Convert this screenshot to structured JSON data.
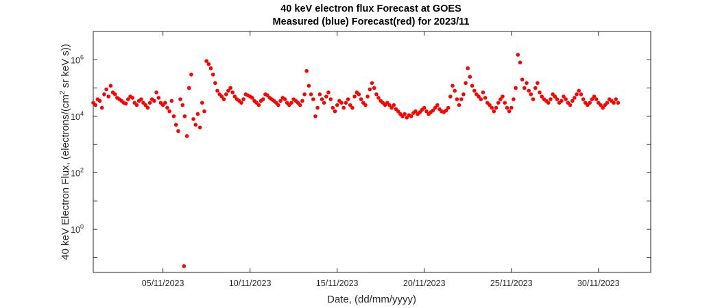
{
  "chart_data": {
    "type": "scatter",
    "title": "40 keV electron flux Forecast at GOES",
    "subtitle": "Measured (blue) Forecast(red) for 2023/11",
    "xlabel": "Date, (dd/mm/yyyy)",
    "ylabel_parts": [
      "40 keV Electron Flux, (electrons/(cm",
      "2",
      " sr keV s))"
    ],
    "y_scale": "log",
    "ylim": [
      0.03,
      10000000
    ],
    "xlim": [
      "2023-11-01T00:00",
      "2023-12-03T00:00"
    ],
    "x_ticks": [
      "05/11/2023",
      "10/11/2023",
      "15/11/2023",
      "20/11/2023",
      "25/11/2023",
      "30/11/2023"
    ],
    "y_ticks": [
      {
        "base": "10",
        "exp": "0"
      },
      {
        "base": "10",
        "exp": "2"
      },
      {
        "base": "10",
        "exp": "4"
      },
      {
        "base": "10",
        "exp": "6"
      }
    ],
    "grid": false,
    "colors": {
      "forecast": "#ff0000",
      "axis": "#262626",
      "background": "#ffffff"
    },
    "series": [
      {
        "color": "#ff0000",
        "points": [
          [
            "2023-11-01T00:00",
            30000
          ],
          [
            "2023-11-01T03:00",
            25000
          ],
          [
            "2023-11-01T06:00",
            40000
          ],
          [
            "2023-11-01T09:00",
            35000
          ],
          [
            "2023-11-01T12:00",
            20000
          ],
          [
            "2023-11-01T15:00",
            60000
          ],
          [
            "2023-11-01T18:00",
            90000
          ],
          [
            "2023-11-01T21:00",
            50000
          ],
          [
            "2023-11-02T00:00",
            120000
          ],
          [
            "2023-11-02T03:00",
            70000
          ],
          [
            "2023-11-02T06:00",
            60000
          ],
          [
            "2023-11-02T09:00",
            45000
          ],
          [
            "2023-11-02T12:00",
            40000
          ],
          [
            "2023-11-02T15:00",
            35000
          ],
          [
            "2023-11-02T18:00",
            30000
          ],
          [
            "2023-11-02T21:00",
            28000
          ],
          [
            "2023-11-03T00:00",
            40000
          ],
          [
            "2023-11-03T03:00",
            50000
          ],
          [
            "2023-11-03T06:00",
            45000
          ],
          [
            "2023-11-03T09:00",
            30000
          ],
          [
            "2023-11-03T12:00",
            25000
          ],
          [
            "2023-11-03T15:00",
            35000
          ],
          [
            "2023-11-03T18:00",
            40000
          ],
          [
            "2023-11-03T21:00",
            30000
          ],
          [
            "2023-11-04T00:00",
            25000
          ],
          [
            "2023-11-04T03:00",
            20000
          ],
          [
            "2023-11-04T06:00",
            30000
          ],
          [
            "2023-11-04T09:00",
            40000
          ],
          [
            "2023-11-04T12:00",
            35000
          ],
          [
            "2023-11-04T15:00",
            70000
          ],
          [
            "2023-11-04T18:00",
            45000
          ],
          [
            "2023-11-04T21:00",
            30000
          ],
          [
            "2023-11-05T00:00",
            25000
          ],
          [
            "2023-11-05T03:00",
            30000
          ],
          [
            "2023-11-05T06:00",
            20000
          ],
          [
            "2023-11-05T09:00",
            15000
          ],
          [
            "2023-11-05T12:00",
            35000
          ],
          [
            "2023-11-05T15:00",
            10000
          ],
          [
            "2023-11-05T18:00",
            5000
          ],
          [
            "2023-11-05T21:00",
            3000
          ],
          [
            "2023-11-06T00:00",
            40000
          ],
          [
            "2023-11-06T03:00",
            25000
          ],
          [
            "2023-11-06T06:00",
            10000
          ],
          [
            "2023-11-06T09:00",
            2000
          ],
          [
            "2023-11-06T12:00",
            100000
          ],
          [
            "2023-11-06T15:00",
            300000
          ],
          [
            "2023-11-06T18:00",
            8000
          ],
          [
            "2023-11-06T21:00",
            5000
          ],
          [
            "2023-11-07T00:00",
            12000
          ],
          [
            "2023-11-07T03:00",
            4000
          ],
          [
            "2023-11-07T06:00",
            30000
          ],
          [
            "2023-11-07T09:00",
            15000
          ],
          [
            "2023-11-07T12:00",
            900000
          ],
          [
            "2023-11-07T15:00",
            700000
          ],
          [
            "2023-11-07T18:00",
            500000
          ],
          [
            "2023-11-07T21:00",
            300000
          ],
          [
            "2023-11-08T00:00",
            150000
          ],
          [
            "2023-11-08T03:00",
            80000
          ],
          [
            "2023-11-08T06:00",
            60000
          ],
          [
            "2023-11-08T09:00",
            50000
          ],
          [
            "2023-11-08T12:00",
            40000
          ],
          [
            "2023-11-08T15:00",
            60000
          ],
          [
            "2023-11-08T18:00",
            80000
          ],
          [
            "2023-11-08T21:00",
            100000
          ],
          [
            "2023-11-09T00:00",
            70000
          ],
          [
            "2023-11-09T03:00",
            50000
          ],
          [
            "2023-11-09T06:00",
            40000
          ],
          [
            "2023-11-09T09:00",
            35000
          ],
          [
            "2023-11-09T12:00",
            30000
          ],
          [
            "2023-11-09T15:00",
            40000
          ],
          [
            "2023-11-09T18:00",
            60000
          ],
          [
            "2023-11-09T21:00",
            55000
          ],
          [
            "2023-11-10T00:00",
            50000
          ],
          [
            "2023-11-10T03:00",
            45000
          ],
          [
            "2023-11-10T06:00",
            35000
          ],
          [
            "2023-11-10T09:00",
            30000
          ],
          [
            "2023-11-10T12:00",
            25000
          ],
          [
            "2023-11-10T15:00",
            35000
          ],
          [
            "2023-11-10T18:00",
            40000
          ],
          [
            "2023-11-10T21:00",
            60000
          ],
          [
            "2023-11-11T00:00",
            55000
          ],
          [
            "2023-11-11T03:00",
            45000
          ],
          [
            "2023-11-11T06:00",
            40000
          ],
          [
            "2023-11-11T09:00",
            35000
          ],
          [
            "2023-11-11T12:00",
            30000
          ],
          [
            "2023-11-11T15:00",
            25000
          ],
          [
            "2023-11-11T18:00",
            35000
          ],
          [
            "2023-11-11T21:00",
            45000
          ],
          [
            "2023-11-12T00:00",
            40000
          ],
          [
            "2023-11-12T03:00",
            30000
          ],
          [
            "2023-11-12T06:00",
            25000
          ],
          [
            "2023-11-12T09:00",
            30000
          ],
          [
            "2023-11-12T12:00",
            40000
          ],
          [
            "2023-11-12T15:00",
            35000
          ],
          [
            "2023-11-12T18:00",
            30000
          ],
          [
            "2023-11-12T21:00",
            25000
          ],
          [
            "2023-11-13T00:00",
            35000
          ],
          [
            "2023-11-13T03:00",
            60000
          ],
          [
            "2023-11-13T06:00",
            400000
          ],
          [
            "2023-11-13T09:00",
            120000
          ],
          [
            "2023-11-13T12:00",
            60000
          ],
          [
            "2023-11-13T15:00",
            40000
          ],
          [
            "2023-11-13T18:00",
            10000
          ],
          [
            "2023-11-13T21:00",
            20000
          ],
          [
            "2023-11-14T00:00",
            60000
          ],
          [
            "2023-11-14T03:00",
            40000
          ],
          [
            "2023-11-14T06:00",
            30000
          ],
          [
            "2023-11-14T09:00",
            50000
          ],
          [
            "2023-11-14T12:00",
            70000
          ],
          [
            "2023-11-14T15:00",
            40000
          ],
          [
            "2023-11-14T18:00",
            20000
          ],
          [
            "2023-11-14T21:00",
            15000
          ],
          [
            "2023-11-15T00:00",
            25000
          ],
          [
            "2023-11-15T03:00",
            35000
          ],
          [
            "2023-11-15T06:00",
            30000
          ],
          [
            "2023-11-15T09:00",
            20000
          ],
          [
            "2023-11-15T12:00",
            30000
          ],
          [
            "2023-11-15T15:00",
            40000
          ],
          [
            "2023-11-15T18:00",
            25000
          ],
          [
            "2023-11-15T21:00",
            20000
          ],
          [
            "2023-11-16T00:00",
            50000
          ],
          [
            "2023-11-16T03:00",
            70000
          ],
          [
            "2023-11-16T06:00",
            60000
          ],
          [
            "2023-11-16T09:00",
            40000
          ],
          [
            "2023-11-16T12:00",
            30000
          ],
          [
            "2023-11-16T15:00",
            25000
          ],
          [
            "2023-11-16T18:00",
            50000
          ],
          [
            "2023-11-16T21:00",
            90000
          ],
          [
            "2023-11-17T00:00",
            150000
          ],
          [
            "2023-11-17T03:00",
            100000
          ],
          [
            "2023-11-17T06:00",
            60000
          ],
          [
            "2023-11-17T09:00",
            45000
          ],
          [
            "2023-11-17T12:00",
            35000
          ],
          [
            "2023-11-17T15:00",
            30000
          ],
          [
            "2023-11-17T18:00",
            25000
          ],
          [
            "2023-11-17T21:00",
            30000
          ],
          [
            "2023-11-18T00:00",
            25000
          ],
          [
            "2023-11-18T03:00",
            20000
          ],
          [
            "2023-11-18T06:00",
            25000
          ],
          [
            "2023-11-18T09:00",
            18000
          ],
          [
            "2023-11-18T12:00",
            15000
          ],
          [
            "2023-11-18T15:00",
            12000
          ],
          [
            "2023-11-18T18:00",
            10000
          ],
          [
            "2023-11-18T21:00",
            12000
          ],
          [
            "2023-11-19T00:00",
            9000
          ],
          [
            "2023-11-19T03:00",
            11000
          ],
          [
            "2023-11-19T06:00",
            10000
          ],
          [
            "2023-11-19T09:00",
            13000
          ],
          [
            "2023-11-19T12:00",
            15000
          ],
          [
            "2023-11-19T15:00",
            12000
          ],
          [
            "2023-11-19T18:00",
            14000
          ],
          [
            "2023-11-19T21:00",
            17000
          ],
          [
            "2023-11-20T00:00",
            20000
          ],
          [
            "2023-11-20T03:00",
            15000
          ],
          [
            "2023-11-20T06:00",
            12000
          ],
          [
            "2023-11-20T09:00",
            14000
          ],
          [
            "2023-11-20T12:00",
            16000
          ],
          [
            "2023-11-20T15:00",
            20000
          ],
          [
            "2023-11-20T18:00",
            25000
          ],
          [
            "2023-11-20T21:00",
            18000
          ],
          [
            "2023-11-21T00:00",
            15000
          ],
          [
            "2023-11-21T03:00",
            14000
          ],
          [
            "2023-11-21T06:00",
            16000
          ],
          [
            "2023-11-21T09:00",
            20000
          ],
          [
            "2023-11-21T12:00",
            50000
          ],
          [
            "2023-11-21T15:00",
            120000
          ],
          [
            "2023-11-21T18:00",
            80000
          ],
          [
            "2023-11-21T21:00",
            40000
          ],
          [
            "2023-11-22T00:00",
            25000
          ],
          [
            "2023-11-22T03:00",
            40000
          ],
          [
            "2023-11-22T06:00",
            60000
          ],
          [
            "2023-11-22T09:00",
            150000
          ],
          [
            "2023-11-22T12:00",
            500000
          ],
          [
            "2023-11-22T15:00",
            250000
          ],
          [
            "2023-11-22T18:00",
            120000
          ],
          [
            "2023-11-22T21:00",
            80000
          ],
          [
            "2023-11-23T00:00",
            60000
          ],
          [
            "2023-11-23T03:00",
            50000
          ],
          [
            "2023-11-23T06:00",
            40000
          ],
          [
            "2023-11-23T09:00",
            70000
          ],
          [
            "2023-11-23T12:00",
            45000
          ],
          [
            "2023-11-23T15:00",
            30000
          ],
          [
            "2023-11-23T18:00",
            25000
          ],
          [
            "2023-11-23T21:00",
            20000
          ],
          [
            "2023-11-24T00:00",
            15000
          ],
          [
            "2023-11-24T03:00",
            20000
          ],
          [
            "2023-11-24T06:00",
            30000
          ],
          [
            "2023-11-24T09:00",
            40000
          ],
          [
            "2023-11-24T12:00",
            50000
          ],
          [
            "2023-11-24T15:00",
            30000
          ],
          [
            "2023-11-24T18:00",
            20000
          ],
          [
            "2023-11-24T21:00",
            15000
          ],
          [
            "2023-11-25T00:00",
            20000
          ],
          [
            "2023-11-25T03:00",
            40000
          ],
          [
            "2023-11-25T06:00",
            100000
          ],
          [
            "2023-11-25T09:00",
            1500000
          ],
          [
            "2023-11-25T12:00",
            800000
          ],
          [
            "2023-11-25T15:00",
            200000
          ],
          [
            "2023-11-25T18:00",
            100000
          ],
          [
            "2023-11-25T21:00",
            150000
          ],
          [
            "2023-11-26T00:00",
            80000
          ],
          [
            "2023-11-26T03:00",
            60000
          ],
          [
            "2023-11-26T06:00",
            40000
          ],
          [
            "2023-11-26T09:00",
            100000
          ],
          [
            "2023-11-26T12:00",
            150000
          ],
          [
            "2023-11-26T15:00",
            70000
          ],
          [
            "2023-11-26T18:00",
            50000
          ],
          [
            "2023-11-26T21:00",
            40000
          ],
          [
            "2023-11-27T00:00",
            35000
          ],
          [
            "2023-11-27T03:00",
            30000
          ],
          [
            "2023-11-27T06:00",
            40000
          ],
          [
            "2023-11-27T09:00",
            60000
          ],
          [
            "2023-11-27T12:00",
            50000
          ],
          [
            "2023-11-27T15:00",
            40000
          ],
          [
            "2023-11-27T18:00",
            30000
          ],
          [
            "2023-11-27T21:00",
            35000
          ],
          [
            "2023-11-28T00:00",
            50000
          ],
          [
            "2023-11-28T03:00",
            40000
          ],
          [
            "2023-11-28T06:00",
            30000
          ],
          [
            "2023-11-28T09:00",
            25000
          ],
          [
            "2023-11-28T12:00",
            35000
          ],
          [
            "2023-11-28T15:00",
            45000
          ],
          [
            "2023-11-28T18:00",
            60000
          ],
          [
            "2023-11-28T21:00",
            80000
          ],
          [
            "2023-11-29T00:00",
            60000
          ],
          [
            "2023-11-29T03:00",
            40000
          ],
          [
            "2023-11-29T06:00",
            30000
          ],
          [
            "2023-11-29T09:00",
            25000
          ],
          [
            "2023-11-29T12:00",
            30000
          ],
          [
            "2023-11-29T15:00",
            40000
          ],
          [
            "2023-11-29T18:00",
            50000
          ],
          [
            "2023-11-29T21:00",
            40000
          ],
          [
            "2023-11-30T00:00",
            30000
          ],
          [
            "2023-11-30T03:00",
            25000
          ],
          [
            "2023-11-30T06:00",
            20000
          ],
          [
            "2023-11-30T09:00",
            25000
          ],
          [
            "2023-11-30T12:00",
            30000
          ],
          [
            "2023-11-30T15:00",
            40000
          ],
          [
            "2023-11-30T18:00",
            35000
          ],
          [
            "2023-11-30T21:00",
            30000
          ],
          [
            "2023-12-01T00:00",
            40000
          ],
          [
            "2023-12-01T03:00",
            30000
          ],
          [
            "2023-11-06T05:00",
            0.05
          ]
        ]
      }
    ]
  }
}
